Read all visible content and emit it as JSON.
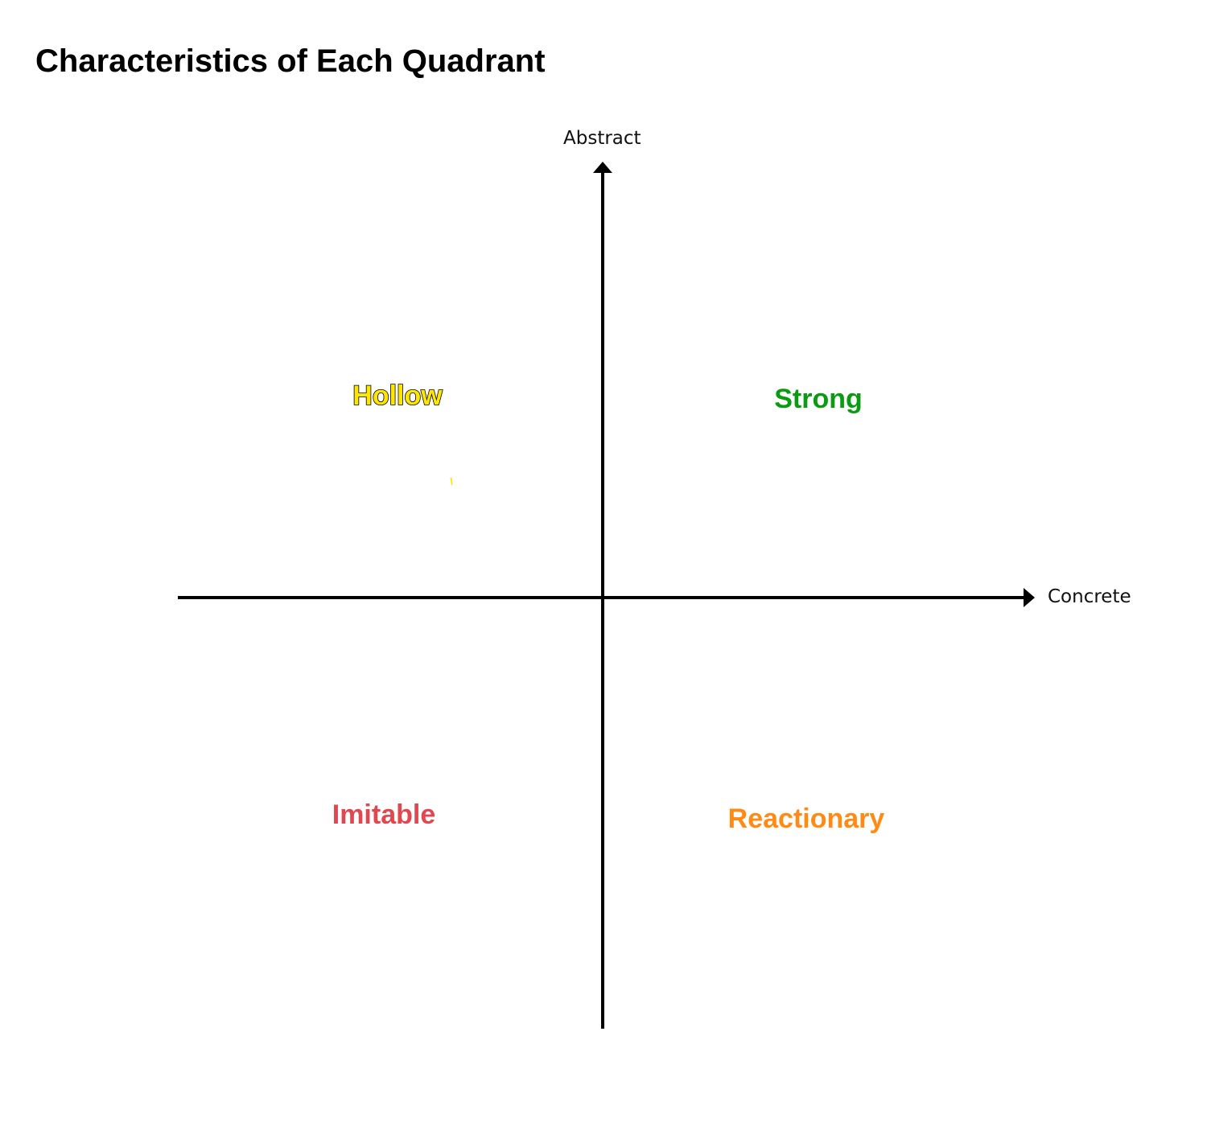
{
  "title": "Characteristics of Each Quadrant",
  "axes": {
    "vertical_label": "Abstract",
    "horizontal_label": "Concrete",
    "color": "#000000"
  },
  "quadrants": {
    "top_left": {
      "label": "Hollow",
      "color": "#FFE600",
      "outline_color": "#000000"
    },
    "top_right": {
      "label": "Strong",
      "color": "#0A9B12"
    },
    "bottom_left": {
      "label": "Imitable",
      "color": "#E0474F"
    },
    "bottom_right": {
      "label": "Reactionary",
      "color": "#FF8A14"
    }
  }
}
